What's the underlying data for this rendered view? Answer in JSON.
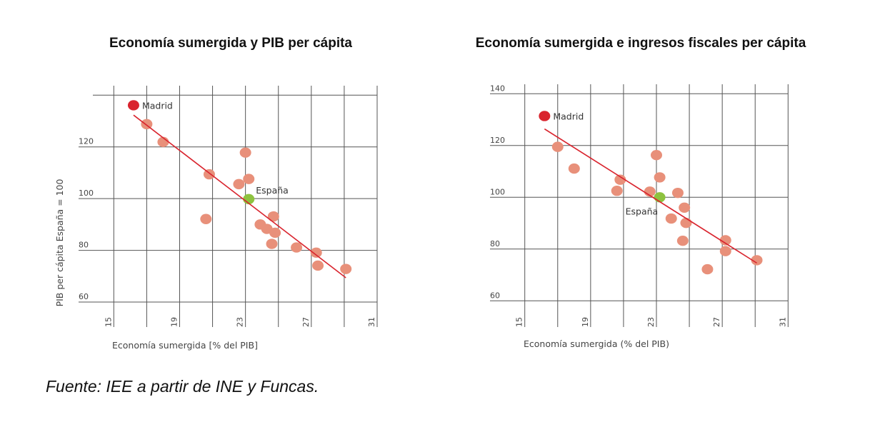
{
  "source": "Fuente: IEE a partir de INE y Funcas.",
  "colors": {
    "point": "#E8907A",
    "madrid": "#D9242E",
    "espana": "#8DC23F",
    "trend": "#D9242E",
    "grid": "#555555"
  },
  "chart_data": [
    {
      "type": "scatter",
      "title": "Economía sumergida y PIB per cápita",
      "xlabel": "Economía sumergida [% del PIB]",
      "ylabel": "PIB per cápita España = 100",
      "xlim": [
        15,
        31
      ],
      "ylim": [
        60,
        140
      ],
      "xticks": [
        "15",
        "19",
        "23",
        "27",
        "31"
      ],
      "yticks": [
        "60",
        "80",
        "100",
        "120"
      ],
      "grid": true,
      "points": [
        {
          "x": 16.2,
          "y": 136.1,
          "label": "Madrid",
          "kind": "madrid"
        },
        {
          "x": 17.0,
          "y": 128.8
        },
        {
          "x": 18.0,
          "y": 121.9
        },
        {
          "x": 20.8,
          "y": 109.4
        },
        {
          "x": 20.6,
          "y": 92.1
        },
        {
          "x": 23.0,
          "y": 117.8
        },
        {
          "x": 22.6,
          "y": 105.6
        },
        {
          "x": 23.2,
          "y": 107.6
        },
        {
          "x": 23.2,
          "y": 99.8,
          "label": "España",
          "kind": "espana"
        },
        {
          "x": 24.7,
          "y": 93.1
        },
        {
          "x": 23.9,
          "y": 90.0
        },
        {
          "x": 24.3,
          "y": 88.3
        },
        {
          "x": 24.8,
          "y": 86.8
        },
        {
          "x": 24.6,
          "y": 82.5
        },
        {
          "x": 26.1,
          "y": 81.1
        },
        {
          "x": 27.3,
          "y": 79.1
        },
        {
          "x": 27.4,
          "y": 74.1
        },
        {
          "x": 29.1,
          "y": 72.8
        }
      ],
      "trendline": [
        [
          16.2,
          132.3
        ],
        [
          29.1,
          69.4
        ]
      ]
    },
    {
      "type": "scatter",
      "title": "Economía sumergida e ingresos fiscales per cápita",
      "xlabel": "Economía sumergida (% del PIB)",
      "ylabel": "",
      "xlim": [
        15,
        31
      ],
      "ylim": [
        60,
        140
      ],
      "xticks": [
        "15",
        "19",
        "23",
        "27",
        "31"
      ],
      "yticks": [
        "60",
        "80",
        "100",
        "120",
        "140"
      ],
      "grid": true,
      "points": [
        {
          "x": 16.2,
          "y": 131.4,
          "label": "Madrid",
          "kind": "madrid"
        },
        {
          "x": 17.0,
          "y": 119.5
        },
        {
          "x": 18.0,
          "y": 111.1
        },
        {
          "x": 20.8,
          "y": 106.8
        },
        {
          "x": 20.6,
          "y": 102.5
        },
        {
          "x": 23.0,
          "y": 116.3
        },
        {
          "x": 23.2,
          "y": 107.7
        },
        {
          "x": 22.6,
          "y": 102.2
        },
        {
          "x": 23.2,
          "y": 100.0,
          "label": "España",
          "kind": "espana"
        },
        {
          "x": 24.3,
          "y": 101.7
        },
        {
          "x": 24.7,
          "y": 96.0
        },
        {
          "x": 23.9,
          "y": 91.8
        },
        {
          "x": 24.8,
          "y": 90.1
        },
        {
          "x": 24.6,
          "y": 83.2
        },
        {
          "x": 27.2,
          "y": 83.4
        },
        {
          "x": 27.2,
          "y": 79.2
        },
        {
          "x": 26.1,
          "y": 72.2
        },
        {
          "x": 29.1,
          "y": 75.7
        }
      ],
      "trendline": [
        [
          16.2,
          126.4
        ],
        [
          29.1,
          74.6
        ]
      ]
    }
  ]
}
